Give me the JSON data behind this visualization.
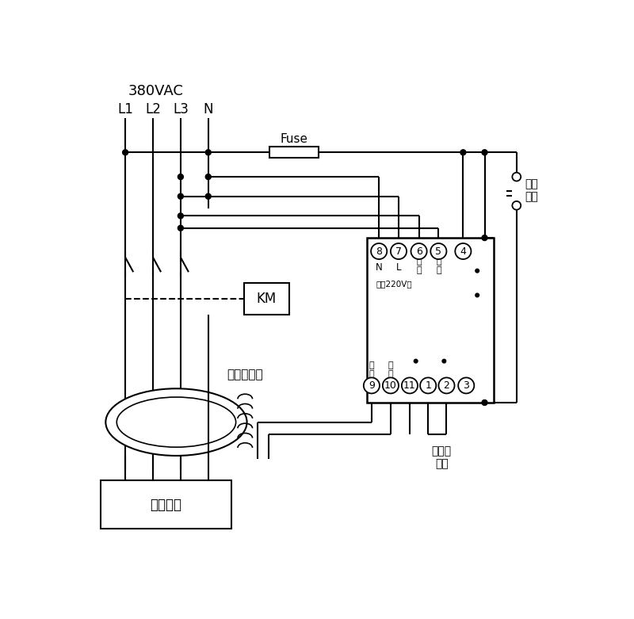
{
  "bg_color": "#ffffff",
  "voltage_label": "380VAC",
  "phase_labels": [
    "L1",
    "L2",
    "L3",
    "N"
  ],
  "fuse_label": "Fuse",
  "km_label": "KM",
  "ct_label": "零序互感器",
  "load_label": "用户设备",
  "relay_top_pins": [
    "8",
    "7",
    "6",
    "5",
    "4"
  ],
  "relay_top_sub": [
    "N",
    "L",
    "試\n驗",
    "試\n驗",
    ""
  ],
  "relay_power_label": "電源220V～",
  "relay_bottom_pins": [
    "9",
    "10",
    "11",
    "1",
    "2",
    "3"
  ],
  "relay_bottom_sub": [
    "信\n號",
    "信\n號",
    "",
    "",
    "",
    ""
  ],
  "self_lock_line1": "自鎖",
  "self_lock_line2": "開關",
  "alarm_line1": "接聲光",
  "alarm_line2": "報警"
}
